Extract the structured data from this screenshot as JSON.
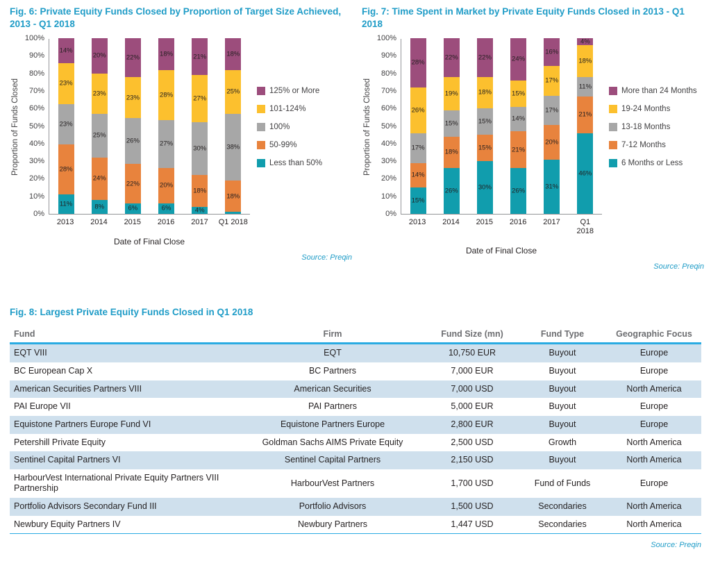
{
  "colors": {
    "title_teal": "#1f9cc7",
    "table_header_line": "#29abe2",
    "table_alt_row": "#cfe0ed",
    "table_header_text": "#6d6e71",
    "body_text": "#231f20",
    "axis_text": "#414042",
    "series_teal": "#119dad",
    "series_orange": "#e8833d",
    "series_gray": "#a7a7a7",
    "series_yellow": "#fcc02e",
    "series_purple": "#9c4d7c"
  },
  "chart_data": [
    {
      "type": "bar",
      "stacked": true,
      "fig_label": "Fig. 6: Private Equity Funds Closed by Proportion of Target Size Achieved, 2013 - Q1 2018",
      "categories": [
        "2013",
        "2014",
        "2015",
        "2016",
        "2017",
        "Q1 2018"
      ],
      "series": [
        {
          "name": "Less than 50%",
          "color": "#119dad",
          "values": [
            11,
            8,
            6,
            6,
            4,
            1
          ],
          "labels": [
            "11%",
            "8%",
            "6%",
            "6%",
            "4%",
            ""
          ]
        },
        {
          "name": "50-99%",
          "color": "#e8833d",
          "values": [
            28,
            24,
            22,
            20,
            18,
            18
          ],
          "labels": [
            "28%",
            "24%",
            "22%",
            "20%",
            "18%",
            "18%"
          ]
        },
        {
          "name": "100%",
          "color": "#a7a7a7",
          "values": [
            23,
            25,
            26,
            27,
            30,
            38
          ],
          "labels": [
            "23%",
            "25%",
            "26%",
            "27%",
            "30%",
            "38%"
          ]
        },
        {
          "name": "101-124%",
          "color": "#fcc02e",
          "values": [
            23,
            23,
            23,
            28,
            27,
            25
          ],
          "labels": [
            "23%",
            "23%",
            "23%",
            "28%",
            "27%",
            "25%"
          ]
        },
        {
          "name": "125% or More",
          "color": "#9c4d7c",
          "values": [
            14,
            20,
            22,
            18,
            21,
            18
          ],
          "labels": [
            "14%",
            "20%",
            "22%",
            "18%",
            "21%",
            "18%"
          ]
        }
      ],
      "ylabel": "Proportion of Funds Closed",
      "xlabel": "Date of Final Close",
      "ylim": [
        0,
        100
      ],
      "y_ticks": [
        "0%",
        "10%",
        "20%",
        "30%",
        "40%",
        "50%",
        "60%",
        "70%",
        "80%",
        "90%",
        "100%"
      ],
      "grid": false,
      "legend_position": "right",
      "source": "Source: Preqin"
    },
    {
      "type": "bar",
      "stacked": true,
      "fig_label": "Fig. 7: Time Spent in Market by Private Equity Funds Closed in 2013 - Q1 2018",
      "categories": [
        "2013",
        "2014",
        "2015",
        "2016",
        "2017",
        "Q1\n2018"
      ],
      "series": [
        {
          "name": "6 Months or Less",
          "color": "#119dad",
          "values": [
            15,
            26,
            30,
            26,
            31,
            46
          ],
          "labels": [
            "15%",
            "26%",
            "30%",
            "26%",
            "31%",
            "46%"
          ]
        },
        {
          "name": "7-12 Months",
          "color": "#e8833d",
          "values": [
            14,
            18,
            15,
            21,
            20,
            21
          ],
          "labels": [
            "14%",
            "18%",
            "15%",
            "21%",
            "20%",
            "21%"
          ]
        },
        {
          "name": "13-18 Months",
          "color": "#a7a7a7",
          "values": [
            17,
            15,
            15,
            14,
            17,
            11
          ],
          "labels": [
            "17%",
            "15%",
            "15%",
            "14%",
            "17%",
            "11%"
          ]
        },
        {
          "name": "19-24 Months",
          "color": "#fcc02e",
          "values": [
            26,
            19,
            18,
            15,
            17,
            18
          ],
          "labels": [
            "26%",
            "19%",
            "18%",
            "15%",
            "17%",
            "18%"
          ]
        },
        {
          "name": "More than 24 Months",
          "color": "#9c4d7c",
          "values": [
            28,
            22,
            22,
            24,
            16,
            4
          ],
          "labels": [
            "28%",
            "22%",
            "22%",
            "24%",
            "16%",
            "4%"
          ]
        }
      ],
      "ylabel": "Proportion of Funds Closed",
      "xlabel": "Date of Final Close",
      "ylim": [
        0,
        100
      ],
      "y_ticks": [
        "0%",
        "10%",
        "20%",
        "30%",
        "40%",
        "50%",
        "60%",
        "70%",
        "80%",
        "90%",
        "100%"
      ],
      "grid": false,
      "legend_position": "right",
      "source": "Source: Preqin"
    }
  ],
  "table": {
    "fig_label": "Fig. 8: Largest Private Equity Funds Closed in Q1 2018",
    "columns": [
      "Fund",
      "Firm",
      "Fund Size (mn)",
      "Fund Type",
      "Geographic Focus"
    ],
    "rows": [
      [
        "EQT VIII",
        "EQT",
        "10,750 EUR",
        "Buyout",
        "Europe"
      ],
      [
        "BC European Cap X",
        "BC Partners",
        "7,000 EUR",
        "Buyout",
        "Europe"
      ],
      [
        "American Securities Partners VIII",
        "American Securities",
        "7,000 USD",
        "Buyout",
        "North America"
      ],
      [
        "PAI Europe VII",
        "PAI Partners",
        "5,000 EUR",
        "Buyout",
        "Europe"
      ],
      [
        "Equistone Partners Europe Fund VI",
        "Equistone Partners Europe",
        "2,800 EUR",
        "Buyout",
        "Europe"
      ],
      [
        "Petershill Private Equity",
        "Goldman Sachs AIMS Private Equity",
        "2,500 USD",
        "Growth",
        "North America"
      ],
      [
        "Sentinel Capital Partners VI",
        "Sentinel Capital Partners",
        "2,150 USD",
        "Buyout",
        "North America"
      ],
      [
        "HarbourVest International Private Equity Partners VIII Partnership",
        "HarbourVest Partners",
        "1,700 USD",
        "Fund of Funds",
        "Europe"
      ],
      [
        "Portfolio Advisors Secondary Fund III",
        "Portfolio Advisors",
        "1,500 USD",
        "Secondaries",
        "North America"
      ],
      [
        "Newbury Equity Partners IV",
        "Newbury Partners",
        "1,447 USD",
        "Secondaries",
        "North America"
      ]
    ],
    "source": "Source: Preqin"
  }
}
